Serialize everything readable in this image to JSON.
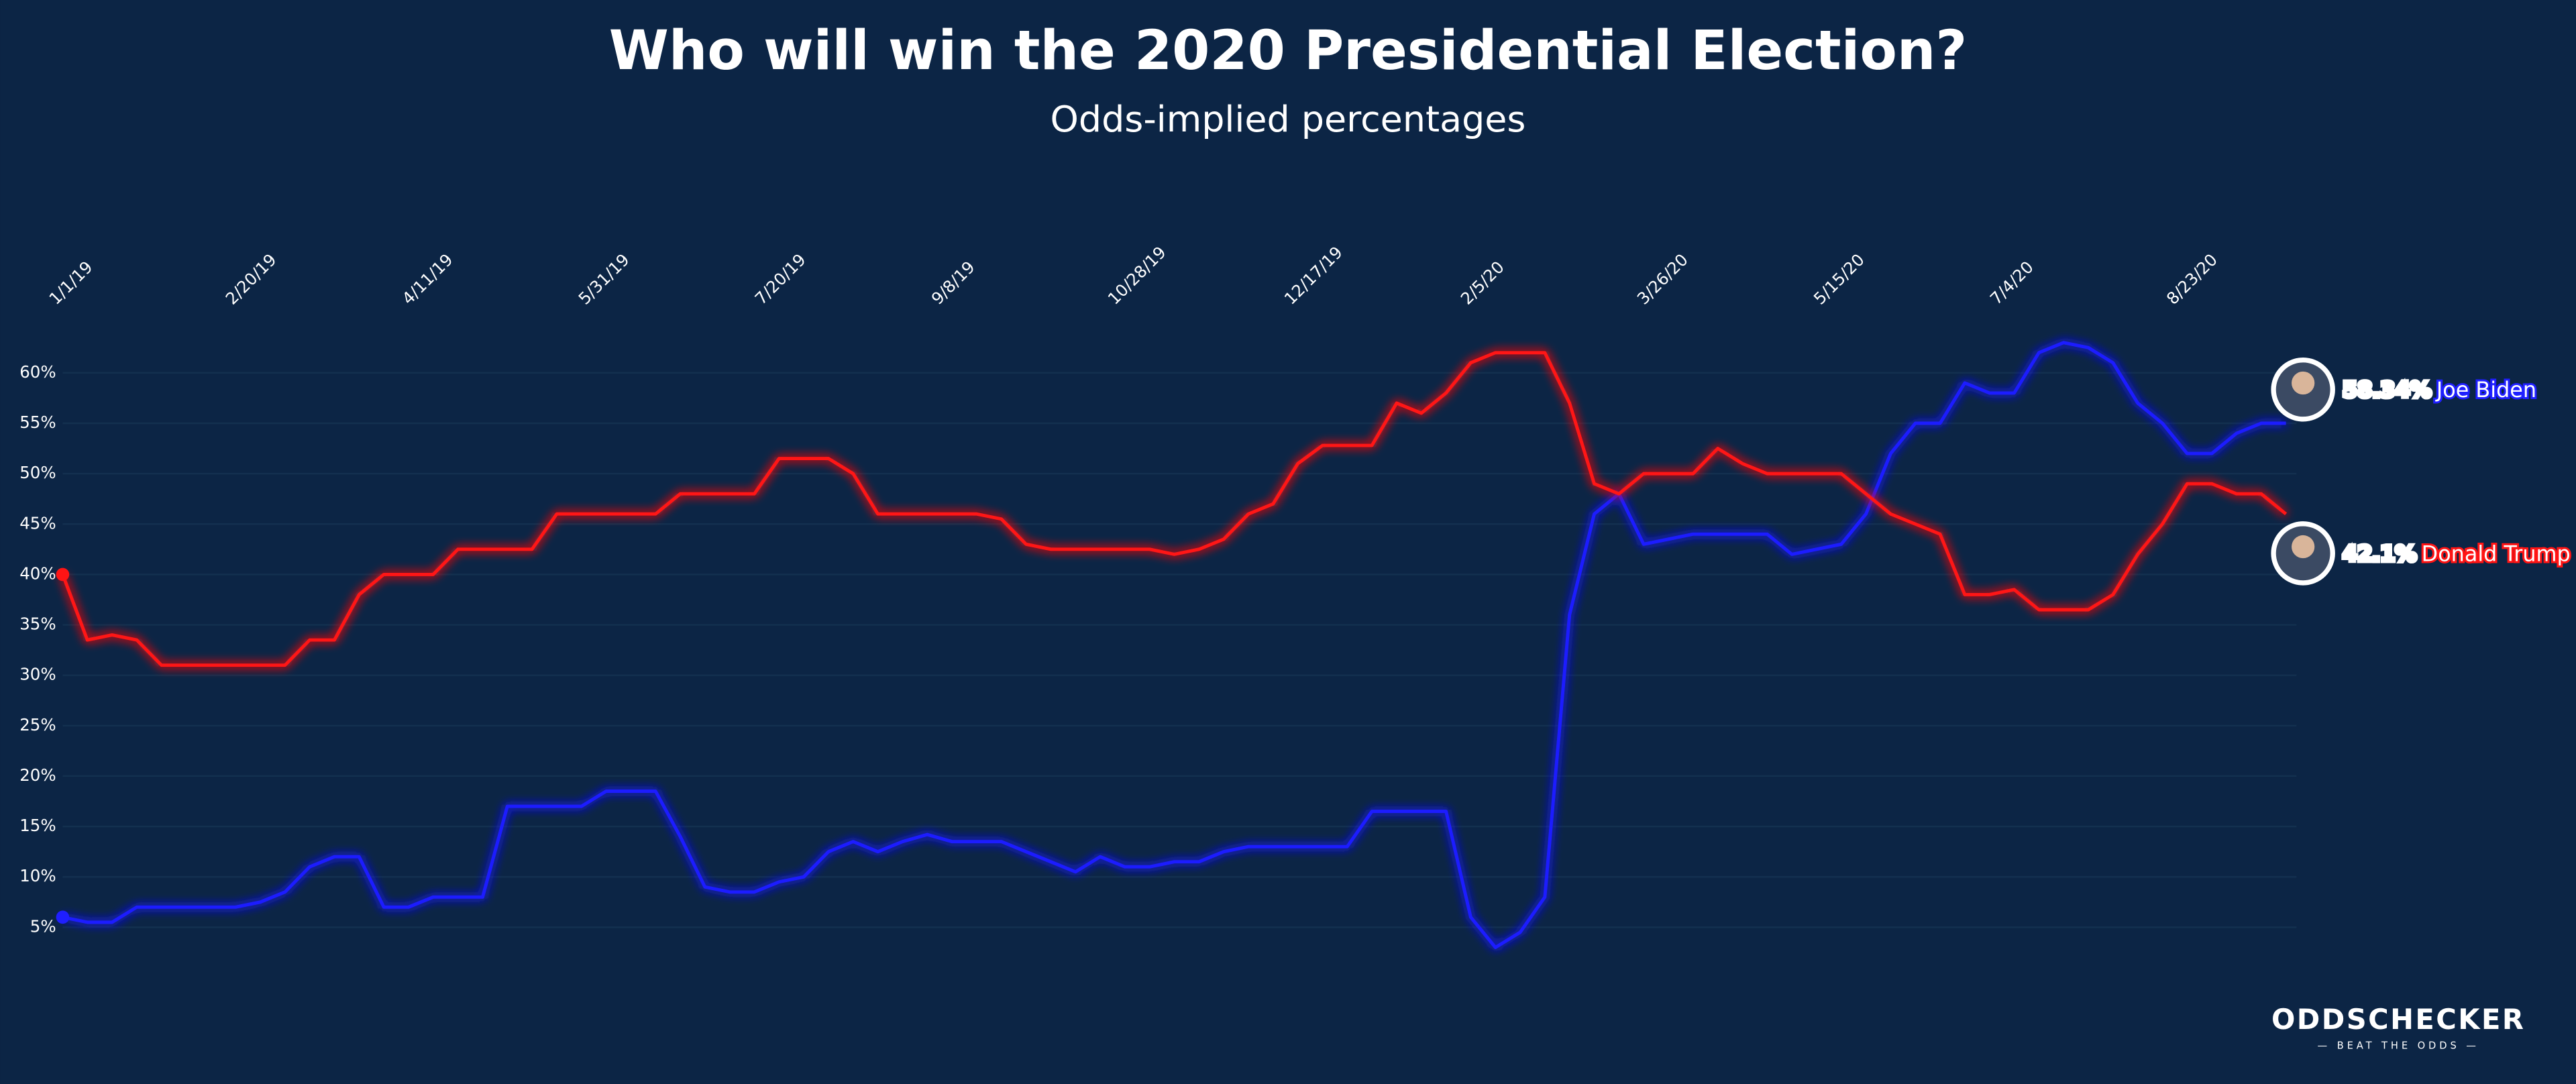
{
  "chart_data": {
    "type": "line",
    "title": "Who will win the 2020 Presidential Election?",
    "subtitle": "Odds-implied percentages",
    "x": [
      "1/1/19",
      "1/8/19",
      "1/15/19",
      "1/22/19",
      "1/29/19",
      "2/5/19",
      "2/12/19",
      "2/19/19",
      "2/26/19",
      "3/5/19",
      "3/12/19",
      "3/19/19",
      "3/26/19",
      "4/2/19",
      "4/9/19",
      "4/16/19",
      "4/23/19",
      "4/30/19",
      "5/7/19",
      "5/14/19",
      "5/21/19",
      "5/28/19",
      "6/4/19",
      "6/11/19",
      "6/18/19",
      "6/25/19",
      "7/2/19",
      "7/9/19",
      "7/16/19",
      "7/23/19",
      "7/30/19",
      "8/6/19",
      "8/13/19",
      "8/20/19",
      "8/27/19",
      "9/3/19",
      "9/10/19",
      "9/17/19",
      "9/24/19",
      "10/1/19",
      "10/8/19",
      "10/15/19",
      "10/22/19",
      "10/29/19",
      "11/5/19",
      "11/12/19",
      "11/19/19",
      "11/26/19",
      "12/3/19",
      "12/10/19",
      "12/17/19",
      "12/24/19",
      "12/31/19",
      "1/7/20",
      "1/14/20",
      "1/21/20",
      "1/28/20",
      "2/4/20",
      "2/11/20",
      "2/18/20",
      "2/25/20",
      "3/3/20",
      "3/10/20",
      "3/17/20",
      "3/24/20",
      "3/31/20",
      "4/7/20",
      "4/14/20",
      "4/21/20",
      "4/28/20",
      "5/5/20",
      "5/12/20",
      "5/19/20",
      "5/26/20",
      "6/2/20",
      "6/9/20",
      "6/16/20",
      "6/23/20",
      "6/30/20",
      "7/7/20",
      "7/14/20",
      "7/21/20",
      "7/28/20",
      "8/4/20",
      "8/11/20",
      "8/18/20",
      "8/25/20",
      "9/1/20",
      "9/8/20",
      "9/15/20",
      "9/22/20"
    ],
    "series": [
      {
        "name": "Joe Biden",
        "color": "#1f1fff",
        "values": [
          6,
          5.5,
          5.5,
          7,
          7,
          7,
          7,
          7,
          7.5,
          8.5,
          11,
          12,
          12,
          7,
          7,
          8,
          8,
          8,
          17,
          17,
          17,
          17,
          18.5,
          18.5,
          18.5,
          14,
          9,
          8.5,
          8.5,
          9.5,
          10,
          12.5,
          13.5,
          12.5,
          13.5,
          14.2,
          13.5,
          13.5,
          13.5,
          12.5,
          11.5,
          10.5,
          12,
          11,
          11,
          11.5,
          11.5,
          12.5,
          13,
          13,
          13,
          13,
          13,
          16.5,
          16.5,
          16.5,
          16.5,
          6,
          3,
          4.5,
          8,
          36,
          46,
          48,
          43,
          43.5,
          44,
          44,
          44,
          44,
          42,
          42.5,
          43,
          46,
          52,
          55,
          55,
          59,
          58,
          58,
          62,
          63,
          62.5,
          61,
          57,
          55,
          52,
          52,
          54,
          55,
          55
        ],
        "current": {
          "value": 58.34,
          "label": "58.34%"
        }
      },
      {
        "name": "Donald Trump",
        "color": "#ff1414",
        "values": [
          40,
          33.5,
          34,
          33.5,
          31,
          31,
          31,
          31,
          31,
          31,
          33.5,
          33.5,
          38,
          40,
          40,
          40,
          42.5,
          42.5,
          42.5,
          42.5,
          46,
          46,
          46,
          46,
          46,
          48,
          48,
          48,
          48,
          51.5,
          51.5,
          51.5,
          50,
          46,
          46,
          46,
          46,
          46,
          45.5,
          43,
          42.5,
          42.5,
          42.5,
          42.5,
          42.5,
          42,
          42.5,
          43.5,
          46,
          47,
          51,
          52.8,
          52.8,
          52.8,
          57,
          56,
          58,
          61,
          62,
          62,
          62,
          57,
          49,
          48,
          50,
          50,
          50,
          52.5,
          51,
          50,
          50,
          50,
          50,
          48,
          46,
          45,
          44,
          38,
          38,
          38.5,
          36.5,
          36.5,
          36.5,
          38,
          42,
          45,
          49,
          49,
          48,
          48,
          46
        ],
        "current": {
          "value": 42.1,
          "label": "42.1%"
        }
      }
    ],
    "xlim": [
      "1/1/19",
      "9/25/20"
    ],
    "xticks": [
      "1/1/19",
      "2/20/19",
      "4/11/19",
      "5/31/19",
      "7/20/19",
      "9/8/19",
      "10/28/19",
      "12/17/19",
      "2/5/20",
      "3/26/20",
      "5/15/20",
      "7/4/20",
      "8/23/20"
    ],
    "ylim": [
      2,
      63
    ],
    "yticks": [
      {
        "value": 5,
        "label": "5%"
      },
      {
        "value": 10,
        "label": "10%"
      },
      {
        "value": 15,
        "label": "15%"
      },
      {
        "value": 20,
        "label": "20%"
      },
      {
        "value": 25,
        "label": "25%"
      },
      {
        "value": 30,
        "label": "30%"
      },
      {
        "value": 35,
        "label": "35%"
      },
      {
        "value": 40,
        "label": "40%"
      },
      {
        "value": 45,
        "label": "45%"
      },
      {
        "value": 50,
        "label": "50%"
      },
      {
        "value": 55,
        "label": "55%"
      },
      {
        "value": 60,
        "label": "60%"
      }
    ],
    "grid": true
  },
  "logo": {
    "text": "ODDSCHECKER",
    "tagline": "— BEAT THE ODDS —"
  }
}
